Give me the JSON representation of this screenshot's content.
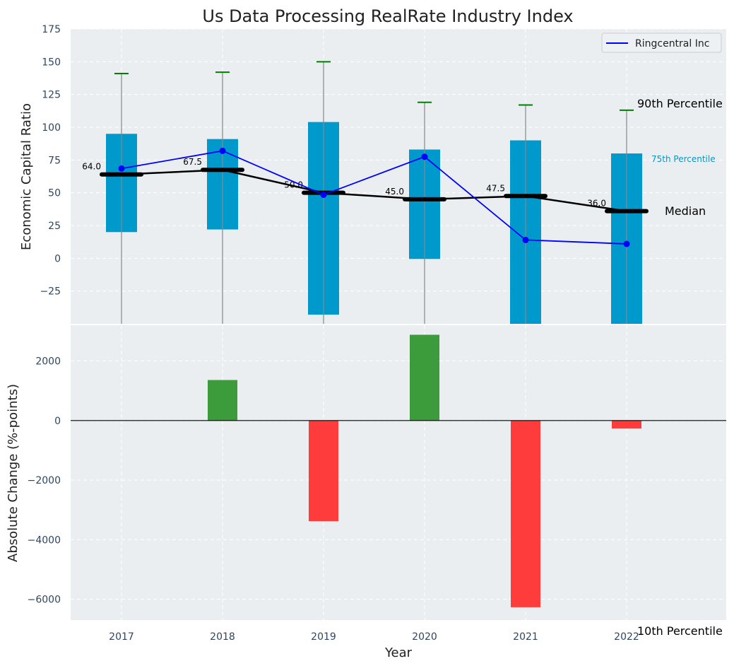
{
  "colors": {
    "panel_bg": "#eaeef0",
    "grid": "#ffffff",
    "box": "#0099cc",
    "whisker": "#808a90",
    "cap": "#008000",
    "median": "#000000",
    "company": "#0000ff",
    "positive": "#3c9c3c",
    "negative": "#ff3c3c",
    "tick_text": "#2e4660",
    "label_text": "#222222",
    "p75_text": "#0099cc"
  },
  "chart_data": [
    {
      "type": "box",
      "title": "Us Data Processing RealRate Industry Index",
      "xlabel": "",
      "ylabel": "Economic Capital Ratio",
      "ylim": [
        -50,
        175
      ],
      "yticks": [
        -25,
        0,
        25,
        50,
        75,
        100,
        125,
        150,
        175
      ],
      "ytick_labels": [
        "−25",
        "0",
        "25",
        "50",
        "75",
        "100",
        "125",
        "150",
        "175"
      ],
      "categories": [
        "2017",
        "2018",
        "2019",
        "2020",
        "2021",
        "2022"
      ],
      "p25": [
        20,
        22,
        -43,
        -0.5,
        -50,
        -50
      ],
      "p75": [
        95,
        91,
        104,
        83,
        90,
        80
      ],
      "p90": [
        141,
        142,
        150,
        119,
        117,
        113
      ],
      "p10": [
        -50,
        -50,
        -50,
        -50,
        -50,
        -50
      ],
      "median": [
        64.0,
        67.5,
        50.0,
        45.0,
        47.5,
        36.0
      ],
      "median_labels": [
        "64.0",
        "67.5",
        "50.0",
        "45.0",
        "47.5",
        "36.0"
      ],
      "series": [
        {
          "name": "Ringcentral Inc",
          "values": [
            68.5,
            82,
            48.5,
            77.5,
            14,
            11
          ]
        }
      ],
      "legend": {
        "position": "top-right",
        "entries": [
          "Ringcentral Inc"
        ]
      },
      "annotations": {
        "p90": "90th Percentile",
        "p75": "75th Percentile",
        "median": "Median",
        "p10": "10th Percentile"
      },
      "grid": true
    },
    {
      "type": "bar",
      "xlabel": "Year",
      "ylabel": "Absolute Change (%-points)",
      "categories": [
        "2017",
        "2018",
        "2019",
        "2020",
        "2021",
        "2022"
      ],
      "values": [
        0,
        1360,
        -3380,
        2880,
        -6270,
        -270
      ],
      "ylim": [
        -6700,
        3200
      ],
      "yticks": [
        -6000,
        -4000,
        -2000,
        0,
        2000
      ],
      "ytick_labels": [
        "−6000",
        "−4000",
        "−2000",
        "0",
        "2000"
      ],
      "grid": true
    }
  ]
}
